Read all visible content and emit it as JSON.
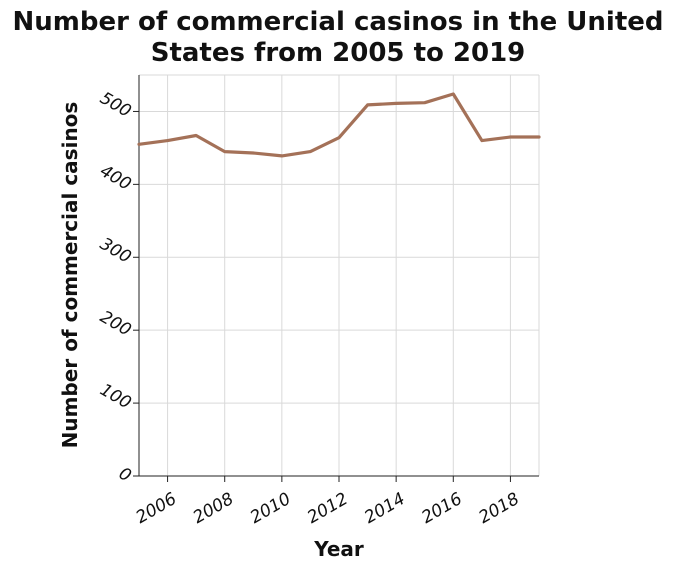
{
  "chart_data": {
    "type": "line",
    "title_lines": [
      "Number of commercial casinos in the United",
      "States from 2005 to 2019"
    ],
    "xlabel": "Year",
    "ylabel": "Number of commercial casinos",
    "x": [
      2005,
      2006,
      2007,
      2008,
      2009,
      2010,
      2011,
      2012,
      2013,
      2014,
      2015,
      2016,
      2017,
      2018,
      2019
    ],
    "series": [
      {
        "values": [
          455,
          460,
          467,
          445,
          443,
          439,
          445,
          464,
          509,
          511,
          512,
          524,
          460,
          465,
          465
        ]
      }
    ],
    "xlim": [
      2005,
      2019
    ],
    "ylim": [
      0,
      550
    ],
    "xticks": [
      2006,
      2008,
      2010,
      2012,
      2014,
      2016,
      2018
    ],
    "yticks": [
      0,
      100,
      200,
      300,
      400,
      500
    ],
    "grid": true,
    "line_color": "#a47158"
  }
}
